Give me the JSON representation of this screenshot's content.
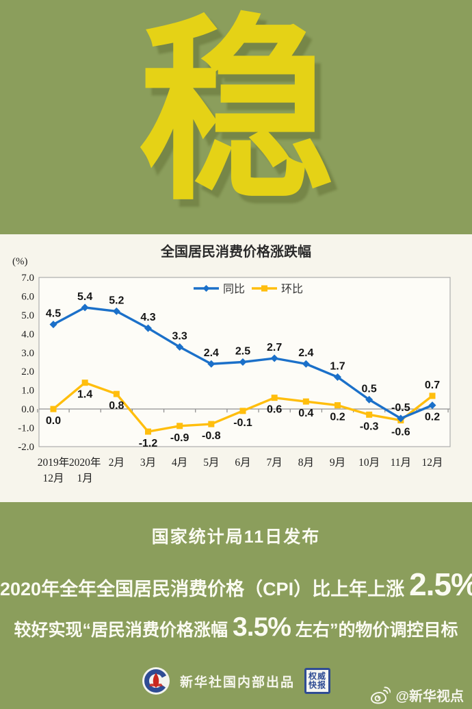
{
  "colors": {
    "background_olive": "#8B9E5C",
    "hero_yellow": "#E5D216",
    "panel_cream": "#F7F5EC",
    "tongbi_blue": "#1B70C9",
    "huanbi_gold": "#FFBE0D",
    "badge_blue": "#2F4C94",
    "text_white": "#FBFBF2"
  },
  "hero": {
    "character": "稳"
  },
  "chart_data": {
    "type": "line",
    "title": "全国居民消费价格涨跌幅",
    "ylabel": "(%)",
    "ylim": [
      -2.0,
      7.0
    ],
    "ytick_step": 1.0,
    "yticks": [
      "7.0",
      "6.0",
      "5.0",
      "4.0",
      "3.0",
      "2.0",
      "1.0",
      "0.0",
      "-1.0",
      "-2.0"
    ],
    "grid": false,
    "zero_baseline": true,
    "legend_position": "top-center",
    "categories": [
      [
        "2019年",
        "12月"
      ],
      [
        "2020年",
        "1月"
      ],
      [
        "2月"
      ],
      [
        "3月"
      ],
      [
        "4月"
      ],
      [
        "5月"
      ],
      [
        "6月"
      ],
      [
        "7月"
      ],
      [
        "8月"
      ],
      [
        "9月"
      ],
      [
        "10月"
      ],
      [
        "11月"
      ],
      [
        "12月"
      ]
    ],
    "series": [
      {
        "name": "环比",
        "color": "#FFBE0D",
        "marker": "square",
        "values": [
          0.0,
          1.4,
          0.8,
          -1.2,
          -0.9,
          -0.8,
          -0.1,
          0.6,
          0.4,
          0.2,
          -0.3,
          -0.6,
          0.7
        ],
        "labels": [
          "0.0",
          "1.4",
          "0.8",
          "-1.2",
          "-0.9",
          "-0.8",
          "-0.1",
          "0.6",
          "0.4",
          "0.2",
          "-0.3",
          "-0.6",
          "0.7"
        ],
        "label_side": [
          "below",
          "below",
          "below",
          "below",
          "below",
          "below",
          "below",
          "below",
          "below",
          "below",
          "below",
          "below",
          "above"
        ]
      },
      {
        "name": "同比",
        "color": "#1B70C9",
        "marker": "diamond",
        "values": [
          4.5,
          5.4,
          5.2,
          4.3,
          3.3,
          2.4,
          2.5,
          2.7,
          2.4,
          1.7,
          0.5,
          -0.5,
          0.2
        ],
        "labels": [
          "4.5",
          "5.4",
          "5.2",
          "4.3",
          "3.3",
          "2.4",
          "2.5",
          "2.7",
          "2.4",
          "1.7",
          "0.5",
          "-0.5",
          "0.2"
        ],
        "label_side": [
          "above",
          "above",
          "above",
          "above",
          "above",
          "above",
          "above",
          "above",
          "above",
          "above",
          "above",
          "above",
          "below"
        ]
      }
    ]
  },
  "announcement": {
    "text": "国家统计局11日发布"
  },
  "stats": {
    "line1_prefix": "2020年全年全国居民消费价格（CPI）比上年上涨",
    "line1_value": "2.5%",
    "line2_prefix": "较好实现“居民消费价格涨幅",
    "line2_value": "3.5%",
    "line2_suffix": "左右”的物价调控目标"
  },
  "footer": {
    "producer": "新华社国内部出品",
    "badge_line1": "权威",
    "badge_line2": "快报",
    "weibo_handle": "@新华视点"
  }
}
